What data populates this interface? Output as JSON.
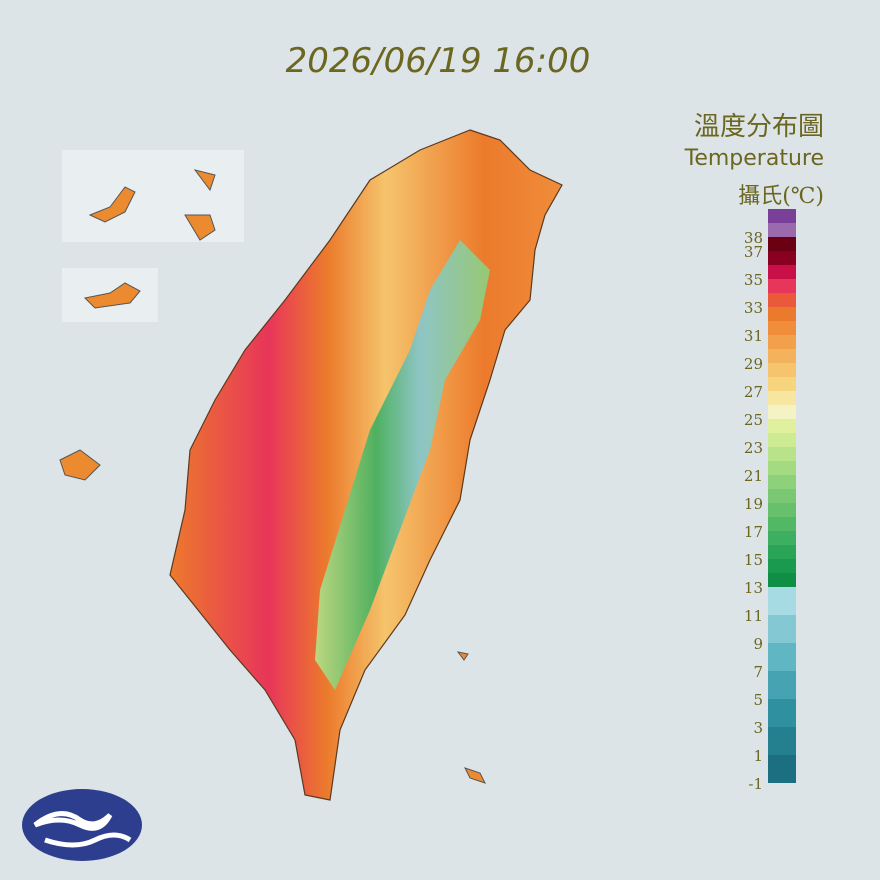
{
  "timestamp": "2026/06/19 16:00",
  "legend": {
    "title_zh": "溫度分布圖",
    "title_en": "Temperature",
    "unit": "攝氏(℃)",
    "ticks": [
      38,
      37,
      35,
      33,
      31,
      29,
      27,
      25,
      23,
      21,
      19,
      17,
      15,
      13,
      11,
      9,
      7,
      5,
      3,
      1,
      -1
    ],
    "colors": [
      "#1c6f80",
      "#1c6f80",
      "#24808f",
      "#24808f",
      "#2f90a0",
      "#2f90a0",
      "#45a3b2",
      "#45a3b2",
      "#60b6c3",
      "#60b6c3",
      "#83c8d2",
      "#83c8d2",
      "#a7dbe3",
      "#a7dbe3",
      "#0f8f45",
      "#1a9a4e",
      "#2aa558",
      "#3daf60",
      "#52b866",
      "#66c06c",
      "#7ac873",
      "#8ed17b",
      "#a3da82",
      "#b8e38a",
      "#cdeb93",
      "#e0f09c",
      "#f3f3c4",
      "#f6e6a0",
      "#f6d57e",
      "#f5c46c",
      "#f4b25c",
      "#f2a04c",
      "#f08d3a",
      "#ec7a2c",
      "#ea5a3a",
      "#e8355a",
      "#c80f48",
      "#8a0020",
      "#6a0012",
      "#9b6aac",
      "#7a3f99"
    ]
  }
}
